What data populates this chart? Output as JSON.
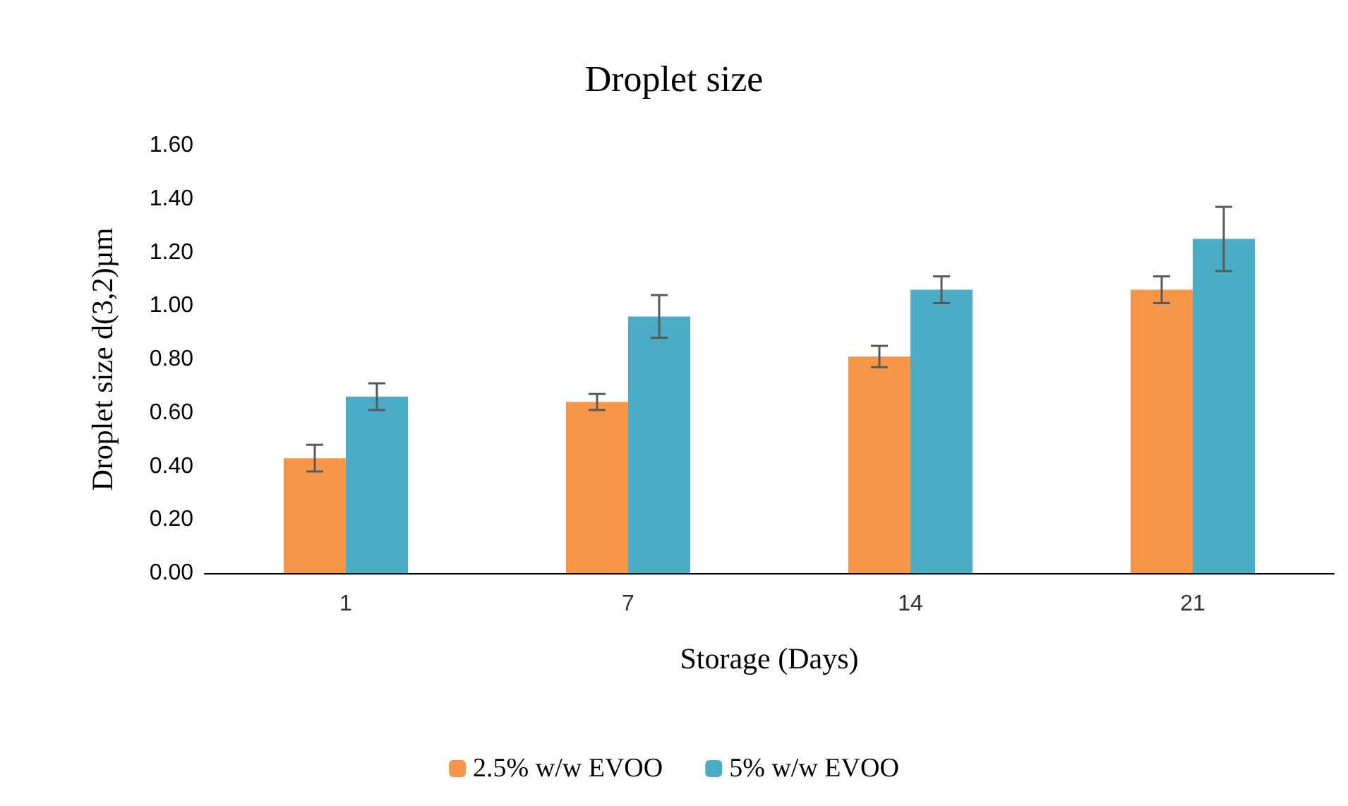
{
  "chart_data": {
    "type": "bar",
    "title": "Droplet size",
    "xlabel": "Storage (Days)",
    "ylabel": "Droplet size d(3,2)µm",
    "categories": [
      "1",
      "7",
      "14",
      "21"
    ],
    "series": [
      {
        "name": "2.5% w/w EVOO",
        "color": "#f79646",
        "values": [
          0.43,
          0.64,
          0.81,
          1.06
        ],
        "errors": [
          0.05,
          0.03,
          0.04,
          0.05
        ]
      },
      {
        "name": "5% w/w EVOO",
        "color": "#4bacc6",
        "values": [
          0.66,
          0.96,
          1.06,
          1.25
        ],
        "errors": [
          0.05,
          0.08,
          0.05,
          0.12
        ]
      }
    ],
    "ylim": [
      0,
      1.6
    ],
    "yticks": [
      {
        "value": 0,
        "label": "0.00"
      },
      {
        "value": 0.2,
        "label": "0.20"
      },
      {
        "value": 0.4,
        "label": "0.40"
      },
      {
        "value": 0.6,
        "label": "0.60"
      },
      {
        "value": 0.8,
        "label": "0.80"
      },
      {
        "value": 1.0,
        "label": "1.00"
      },
      {
        "value": 1.2,
        "label": "1.20"
      },
      {
        "value": 1.4,
        "label": "1.40"
      },
      {
        "value": 1.6,
        "label": "1.60"
      }
    ],
    "grid": false,
    "legend": "bottom"
  }
}
